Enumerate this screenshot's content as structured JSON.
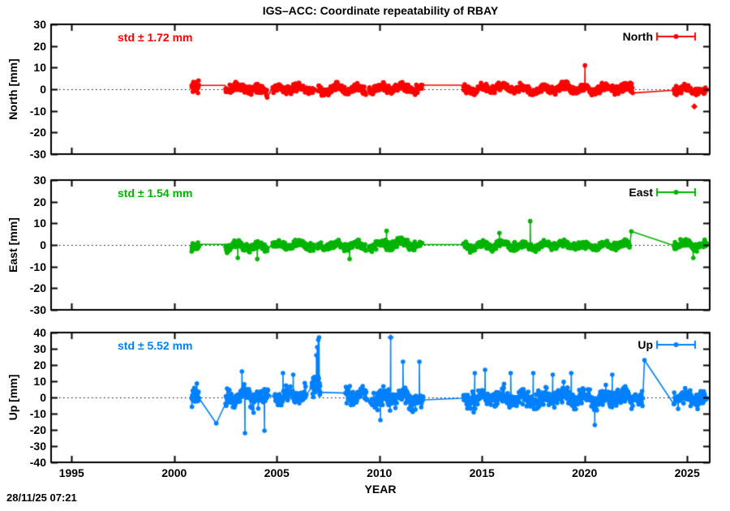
{
  "title": "IGS–ACC: Coordinate repeatability of RBAY",
  "timestamp": "28/11/25 07:21",
  "x_axis": {
    "label": "YEAR",
    "ticks": [
      1995,
      2000,
      2005,
      2010,
      2015,
      2020,
      2025
    ],
    "range": [
      1994.0,
      2026.1
    ]
  },
  "chart_data": [
    {
      "type": "scatter",
      "series_name": "North",
      "ylabel": "North [mm]",
      "std_label": "std ± 1.72 mm",
      "legend_label": "North",
      "color": "#ff0000",
      "ylim": [
        -30,
        30
      ],
      "yticks": [
        30,
        20,
        10,
        0,
        -10,
        -20,
        -30
      ],
      "zero_line": true,
      "segments": [
        {
          "kind": "cluster",
          "x0": 2000.85,
          "x1": 2001.2,
          "mean": 0.8,
          "amp": 5.5,
          "wiggle": 0.3,
          "step": 0.014
        },
        {
          "kind": "line",
          "points": [
            [
              2001.22,
              1.8
            ],
            [
              2002.48,
              1.8
            ]
          ]
        },
        {
          "kind": "cluster",
          "x0": 2002.5,
          "x1": 2004.55,
          "mean": 0.2,
          "amp": 3.2,
          "wiggle": 1.0,
          "step": 0.019
        },
        {
          "kind": "cluster",
          "x0": 2004.8,
          "x1": 2006.85,
          "mean": 0.0,
          "amp": 3.2,
          "wiggle": 1.1,
          "step": 0.019
        },
        {
          "kind": "cluster",
          "x0": 2007.0,
          "x1": 2009.35,
          "mean": -0.2,
          "amp": 3.0,
          "wiggle": 1.2,
          "step": 0.019
        },
        {
          "kind": "cluster",
          "x0": 2009.5,
          "x1": 2012.1,
          "mean": 0.3,
          "amp": 3.2,
          "wiggle": 1.1,
          "step": 0.019
        },
        {
          "kind": "line",
          "points": [
            [
              2012.15,
              1.9
            ],
            [
              2014.05,
              1.9
            ]
          ]
        },
        {
          "kind": "cluster",
          "x0": 2014.1,
          "x1": 2022.35,
          "mean": 0.2,
          "amp": 3.2,
          "wiggle": 1.1,
          "step": 0.019
        },
        {
          "kind": "cluster",
          "x0": 2024.35,
          "x1": 2025.95,
          "mean": -0.6,
          "amp": 3.0,
          "wiggle": 0.9,
          "step": 0.019
        }
      ],
      "spikes": [
        {
          "x": 2020.02,
          "y": 11
        }
      ],
      "outliers": [
        {
          "x": 2025.35,
          "y": -8,
          "shape": "diamond"
        }
      ]
    },
    {
      "type": "scatter",
      "series_name": "East",
      "ylabel": "East [mm]",
      "std_label": "std ± 1.54 mm",
      "legend_label": "East",
      "color": "#00b400",
      "ylim": [
        -30,
        30
      ],
      "yticks": [
        30,
        20,
        10,
        0,
        -10,
        -20,
        -30
      ],
      "zero_line": true,
      "segments": [
        {
          "kind": "cluster",
          "x0": 2000.85,
          "x1": 2001.2,
          "mean": -0.5,
          "amp": 3.8,
          "wiggle": 0.3,
          "step": 0.014
        },
        {
          "kind": "line",
          "points": [
            [
              2001.22,
              0.3
            ],
            [
              2002.48,
              0.3
            ]
          ]
        },
        {
          "kind": "cluster",
          "x0": 2002.5,
          "x1": 2004.55,
          "mean": -0.8,
          "amp": 3.2,
          "wiggle": 1.0,
          "step": 0.019
        },
        {
          "kind": "cluster",
          "x0": 2004.8,
          "x1": 2006.85,
          "mean": -0.3,
          "amp": 2.8,
          "wiggle": 0.9,
          "step": 0.019
        },
        {
          "kind": "cluster",
          "x0": 2007.0,
          "x1": 2009.35,
          "mean": -0.5,
          "amp": 3.0,
          "wiggle": 1.0,
          "step": 0.019
        },
        {
          "kind": "cluster",
          "x0": 2009.5,
          "x1": 2012.1,
          "mean": 0.2,
          "amp": 3.2,
          "wiggle": 1.1,
          "step": 0.019
        },
        {
          "kind": "line",
          "points": [
            [
              2012.15,
              0.2
            ],
            [
              2014.05,
              0.2
            ]
          ]
        },
        {
          "kind": "cluster",
          "x0": 2014.1,
          "x1": 2022.2,
          "mean": -0.2,
          "amp": 2.9,
          "wiggle": 1.0,
          "step": 0.019
        },
        {
          "kind": "cluster",
          "x0": 2024.35,
          "x1": 2025.95,
          "mean": 0.0,
          "amp": 3.0,
          "wiggle": 0.9,
          "step": 0.019
        }
      ],
      "spikes": [
        {
          "x": 2003.1,
          "y": -6
        },
        {
          "x": 2004.05,
          "y": -6.5
        },
        {
          "x": 2008.55,
          "y": -6.5
        },
        {
          "x": 2010.35,
          "y": 6.5
        },
        {
          "x": 2015.85,
          "y": 5.5
        },
        {
          "x": 2017.35,
          "y": 11
        },
        {
          "x": 2022.28,
          "y": 6.3
        },
        {
          "x": 2025.3,
          "y": -6
        }
      ],
      "outliers": []
    },
    {
      "type": "scatter",
      "series_name": "Up",
      "ylabel": "Up [mm]",
      "std_label": "std ± 5.52 mm",
      "legend_label": "Up",
      "color": "#0080ff",
      "ylim": [
        -40,
        40
      ],
      "yticks": [
        40,
        30,
        20,
        10,
        0,
        -10,
        -20,
        -30,
        -40
      ],
      "zero_line": true,
      "segments": [
        {
          "kind": "cluster",
          "x0": 2000.85,
          "x1": 2001.2,
          "mean": 0,
          "amp": 11,
          "wiggle": 0.5,
          "step": 0.014
        },
        {
          "kind": "cluster",
          "x0": 2002.5,
          "x1": 2004.6,
          "mean": -0.5,
          "amp": 9,
          "wiggle": 2.0,
          "step": 0.019
        },
        {
          "kind": "cluster",
          "x0": 2004.9,
          "x1": 2006.45,
          "mean": 0.5,
          "amp": 8,
          "wiggle": 2.0,
          "step": 0.019
        },
        {
          "kind": "cluster",
          "x0": 2006.7,
          "x1": 2007.12,
          "mean": 8,
          "amp": 11,
          "wiggle": 1.0,
          "step": 0.012
        },
        {
          "kind": "cluster",
          "x0": 2008.35,
          "x1": 2009.4,
          "mean": 1,
          "amp": 8,
          "wiggle": 2.0,
          "step": 0.019
        },
        {
          "kind": "cluster",
          "x0": 2009.55,
          "x1": 2012.15,
          "mean": -1,
          "amp": 9,
          "wiggle": 2.2,
          "step": 0.019
        },
        {
          "kind": "line",
          "points": [
            [
              2012.2,
              -1.5
            ],
            [
              2014.0,
              -0.5
            ]
          ]
        },
        {
          "kind": "cluster",
          "x0": 2014.1,
          "x1": 2022.85,
          "mean": -0.5,
          "amp": 9,
          "wiggle": 2.2,
          "step": 0.019
        },
        {
          "kind": "cluster",
          "x0": 2024.35,
          "x1": 2025.95,
          "mean": 0,
          "amp": 8,
          "wiggle": 1.8,
          "step": 0.019
        }
      ],
      "spikes": [
        {
          "x": 2002.05,
          "y": -16
        },
        {
          "x": 2003.3,
          "y": 16
        },
        {
          "x": 2003.45,
          "y": -22
        },
        {
          "x": 2004.4,
          "y": -20.5
        },
        {
          "x": 2005.3,
          "y": 15
        },
        {
          "x": 2005.8,
          "y": 14
        },
        {
          "x": 2006.93,
          "y": 26
        },
        {
          "x": 2006.97,
          "y": 31
        },
        {
          "x": 2007.02,
          "y": 35.5
        },
        {
          "x": 2007.06,
          "y": 37
        },
        {
          "x": 2010.05,
          "y": -14
        },
        {
          "x": 2010.55,
          "y": 37,
          "shape": "diamond"
        },
        {
          "x": 2011.15,
          "y": 22
        },
        {
          "x": 2011.95,
          "y": 22
        },
        {
          "x": 2014.65,
          "y": 15
        },
        {
          "x": 2015.15,
          "y": 17
        },
        {
          "x": 2016.4,
          "y": 15
        },
        {
          "x": 2017.5,
          "y": 15
        },
        {
          "x": 2018.45,
          "y": 14
        },
        {
          "x": 2019.35,
          "y": 15
        },
        {
          "x": 2020.5,
          "y": -17
        },
        {
          "x": 2021.35,
          "y": 14
        },
        {
          "x": 2022.92,
          "y": 23
        }
      ],
      "outliers": []
    }
  ]
}
